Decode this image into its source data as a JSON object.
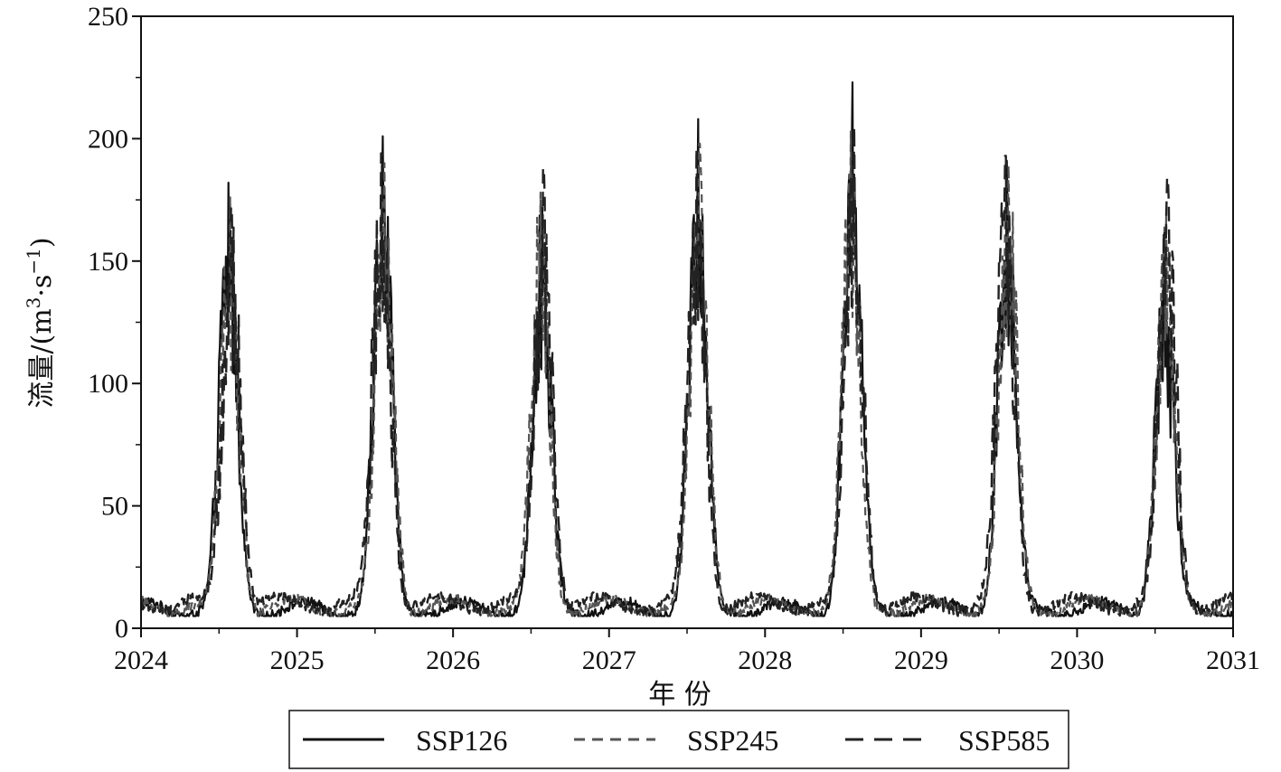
{
  "chart_data": {
    "type": "line",
    "title": "",
    "xlabel": "年 份",
    "ylabel": "流量/(m³·s⁻¹)",
    "ylabel_parts": {
      "prefix": "流量/(m",
      "sup1": "3",
      "mid": "·s",
      "sup2": "−1",
      "suffix": ")"
    },
    "xlim": [
      2024,
      2031
    ],
    "ylim": [
      0,
      250
    ],
    "x_ticks": [
      2024,
      2025,
      2026,
      2027,
      2028,
      2029,
      2030,
      2031
    ],
    "y_ticks": [
      0,
      50,
      100,
      150,
      200,
      250
    ],
    "x_minor_step": 0.5,
    "y_minor_step": 25,
    "grid": false,
    "legend_position": "bottom",
    "series": [
      {
        "name": "SSP126",
        "color": "#111111",
        "style": "solid",
        "peaks": [
          {
            "center": 2024.56,
            "peak": 182,
            "width": 0.085
          },
          {
            "center": 2025.55,
            "peak": 201,
            "width": 0.085
          },
          {
            "center": 2026.57,
            "peak": 172,
            "width": 0.085
          },
          {
            "center": 2027.57,
            "peak": 208,
            "width": 0.085
          },
          {
            "center": 2028.56,
            "peak": 223,
            "width": 0.085
          },
          {
            "center": 2029.55,
            "peak": 191,
            "width": 0.085
          },
          {
            "center": 2030.56,
            "peak": 162,
            "width": 0.085
          }
        ],
        "baseline": 8
      },
      {
        "name": "SSP245",
        "color": "#555555",
        "style": "dashed-short",
        "peaks": [
          {
            "center": 2024.57,
            "peak": 176,
            "width": 0.085
          },
          {
            "center": 2025.56,
            "peak": 190,
            "width": 0.085
          },
          {
            "center": 2026.56,
            "peak": 178,
            "width": 0.085
          },
          {
            "center": 2027.58,
            "peak": 198,
            "width": 0.085
          },
          {
            "center": 2028.55,
            "peak": 203,
            "width": 0.085
          },
          {
            "center": 2029.56,
            "peak": 189,
            "width": 0.085
          },
          {
            "center": 2030.57,
            "peak": 170,
            "width": 0.085
          }
        ],
        "baseline": 9
      },
      {
        "name": "SSP585",
        "color": "#222222",
        "style": "dashed-long",
        "peaks": [
          {
            "center": 2024.58,
            "peak": 172,
            "width": 0.085
          },
          {
            "center": 2025.54,
            "peak": 194,
            "width": 0.085
          },
          {
            "center": 2026.58,
            "peak": 188,
            "width": 0.085
          },
          {
            "center": 2027.56,
            "peak": 196,
            "width": 0.085
          },
          {
            "center": 2028.57,
            "peak": 205,
            "width": 0.085
          },
          {
            "center": 2029.54,
            "peak": 193,
            "width": 0.085
          },
          {
            "center": 2030.58,
            "peak": 184,
            "width": 0.085
          }
        ],
        "baseline": 10
      }
    ]
  }
}
